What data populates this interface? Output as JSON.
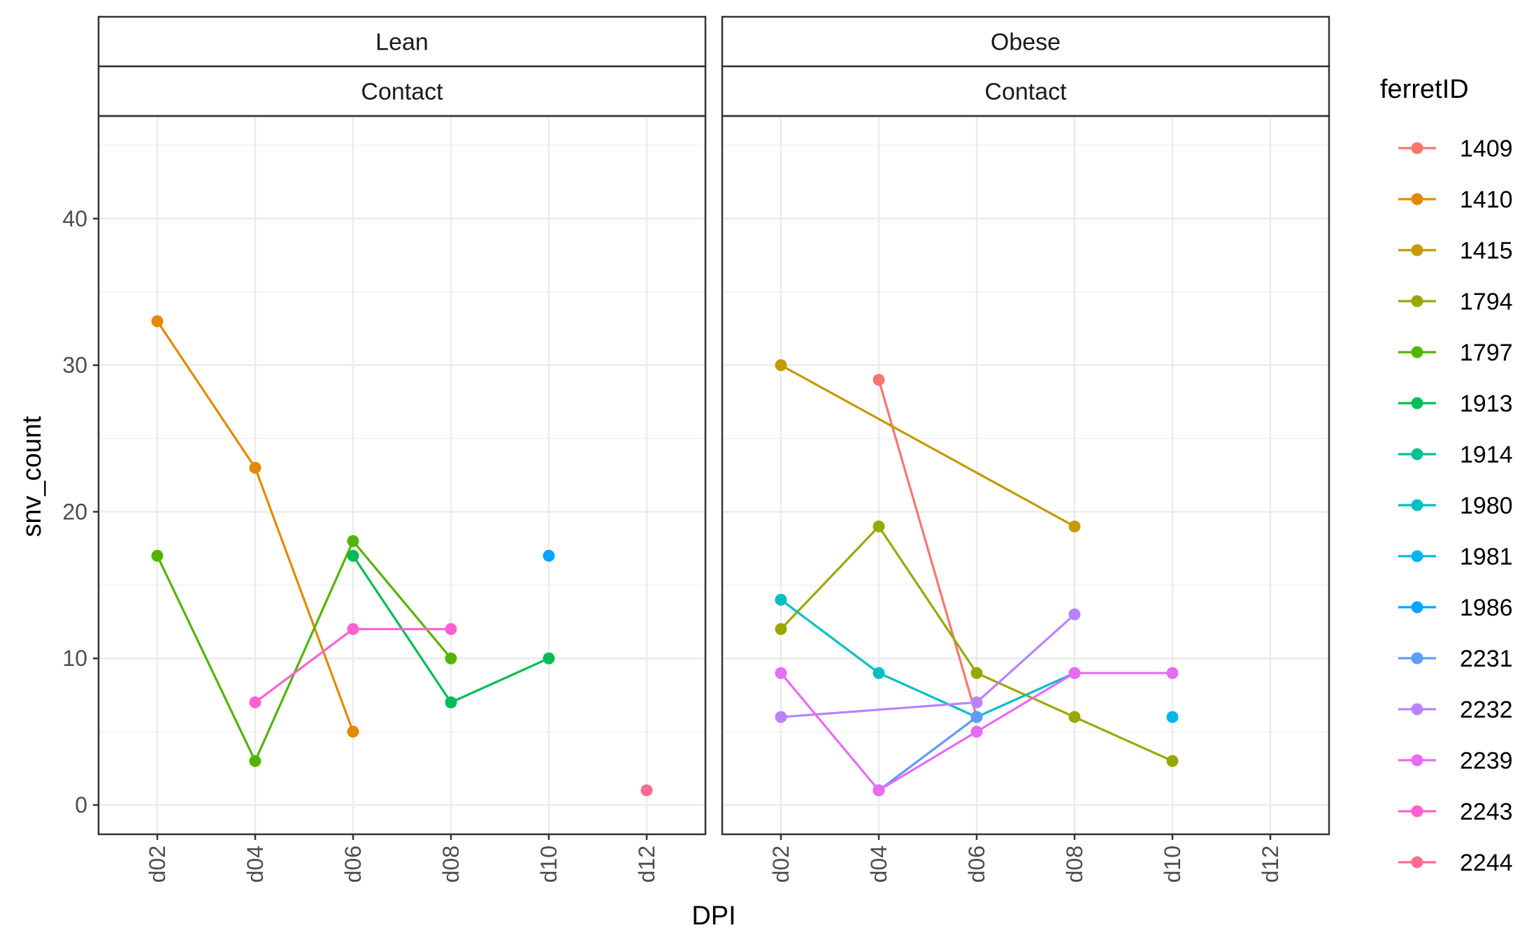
{
  "chart_data": {
    "type": "line",
    "xlabel": "DPI",
    "ylabel": "snv_count",
    "categories": [
      "d02",
      "d04",
      "d06",
      "d08",
      "d10",
      "d12"
    ],
    "ylim": [
      -2,
      47
    ],
    "yticks": [
      0,
      10,
      20,
      30,
      40
    ],
    "grid": true,
    "legend": {
      "title": "ferretID",
      "position": "right"
    },
    "panels": [
      {
        "label": "Lean",
        "sublabel": "Contact"
      },
      {
        "label": "Obese",
        "sublabel": "Contact"
      }
    ],
    "series": [
      {
        "name": "1409",
        "color": "#F8766D",
        "points": [
          {
            "panel": 1,
            "x": "d04",
            "y": 29
          },
          {
            "panel": 1,
            "x": "d06",
            "y": 6
          }
        ]
      },
      {
        "name": "1410",
        "color": "#E38900",
        "points": [
          {
            "panel": 0,
            "x": "d02",
            "y": 33
          },
          {
            "panel": 0,
            "x": "d04",
            "y": 23
          },
          {
            "panel": 0,
            "x": "d06",
            "y": 5
          }
        ]
      },
      {
        "name": "1415",
        "color": "#C49A00",
        "points": [
          {
            "panel": 1,
            "x": "d02",
            "y": 30
          },
          {
            "panel": 1,
            "x": "d08",
            "y": 19
          }
        ]
      },
      {
        "name": "1794",
        "color": "#99A800",
        "points": [
          {
            "panel": 1,
            "x": "d02",
            "y": 12
          },
          {
            "panel": 1,
            "x": "d04",
            "y": 19
          },
          {
            "panel": 1,
            "x": "d06",
            "y": 9
          },
          {
            "panel": 1,
            "x": "d08",
            "y": 6
          },
          {
            "panel": 1,
            "x": "d10",
            "y": 3
          }
        ]
      },
      {
        "name": "1797",
        "color": "#53B400",
        "points": [
          {
            "panel": 0,
            "x": "d02",
            "y": 17
          },
          {
            "panel": 0,
            "x": "d04",
            "y": 3
          },
          {
            "panel": 0,
            "x": "d06",
            "y": 18
          },
          {
            "panel": 0,
            "x": "d08",
            "y": 10
          }
        ]
      },
      {
        "name": "1913",
        "color": "#00BC56",
        "points": [
          {
            "panel": 0,
            "x": "d06",
            "y": 17
          },
          {
            "panel": 0,
            "x": "d08",
            "y": 7
          },
          {
            "panel": 0,
            "x": "d10",
            "y": 10
          }
        ]
      },
      {
        "name": "1914",
        "color": "#00C094",
        "points": []
      },
      {
        "name": "1980",
        "color": "#00BFC4",
        "points": [
          {
            "panel": 1,
            "x": "d02",
            "y": 14
          },
          {
            "panel": 1,
            "x": "d04",
            "y": 9
          },
          {
            "panel": 1,
            "x": "d06",
            "y": 6
          },
          {
            "panel": 1,
            "x": "d08",
            "y": 9
          }
        ]
      },
      {
        "name": "1981",
        "color": "#00B6EB",
        "points": [
          {
            "panel": 1,
            "x": "d10",
            "y": 6
          }
        ]
      },
      {
        "name": "1986",
        "color": "#06A4FF",
        "points": [
          {
            "panel": 0,
            "x": "d10",
            "y": 17
          }
        ]
      },
      {
        "name": "2231",
        "color": "#5F9BF8",
        "points": [
          {
            "panel": 1,
            "x": "d04",
            "y": 1
          },
          {
            "panel": 1,
            "x": "d06",
            "y": 6
          }
        ]
      },
      {
        "name": "2232",
        "color": "#B983FF",
        "points": [
          {
            "panel": 1,
            "x": "d02",
            "y": 6
          },
          {
            "panel": 1,
            "x": "d06",
            "y": 7
          },
          {
            "panel": 1,
            "x": "d08",
            "y": 13
          }
        ]
      },
      {
        "name": "2239",
        "color": "#E76BF3",
        "points": [
          {
            "panel": 1,
            "x": "d02",
            "y": 9
          },
          {
            "panel": 1,
            "x": "d04",
            "y": 1
          },
          {
            "panel": 1,
            "x": "d06",
            "y": 5
          },
          {
            "panel": 1,
            "x": "d08",
            "y": 9
          },
          {
            "panel": 1,
            "x": "d10",
            "y": 9
          }
        ]
      },
      {
        "name": "2243",
        "color": "#FD61D1",
        "points": [
          {
            "panel": 0,
            "x": "d04",
            "y": 7
          },
          {
            "panel": 0,
            "x": "d06",
            "y": 12
          },
          {
            "panel": 0,
            "x": "d08",
            "y": 12
          }
        ]
      },
      {
        "name": "2244",
        "color": "#FF6C91",
        "points": [
          {
            "panel": 0,
            "x": "d12",
            "y": 1
          }
        ]
      }
    ]
  }
}
